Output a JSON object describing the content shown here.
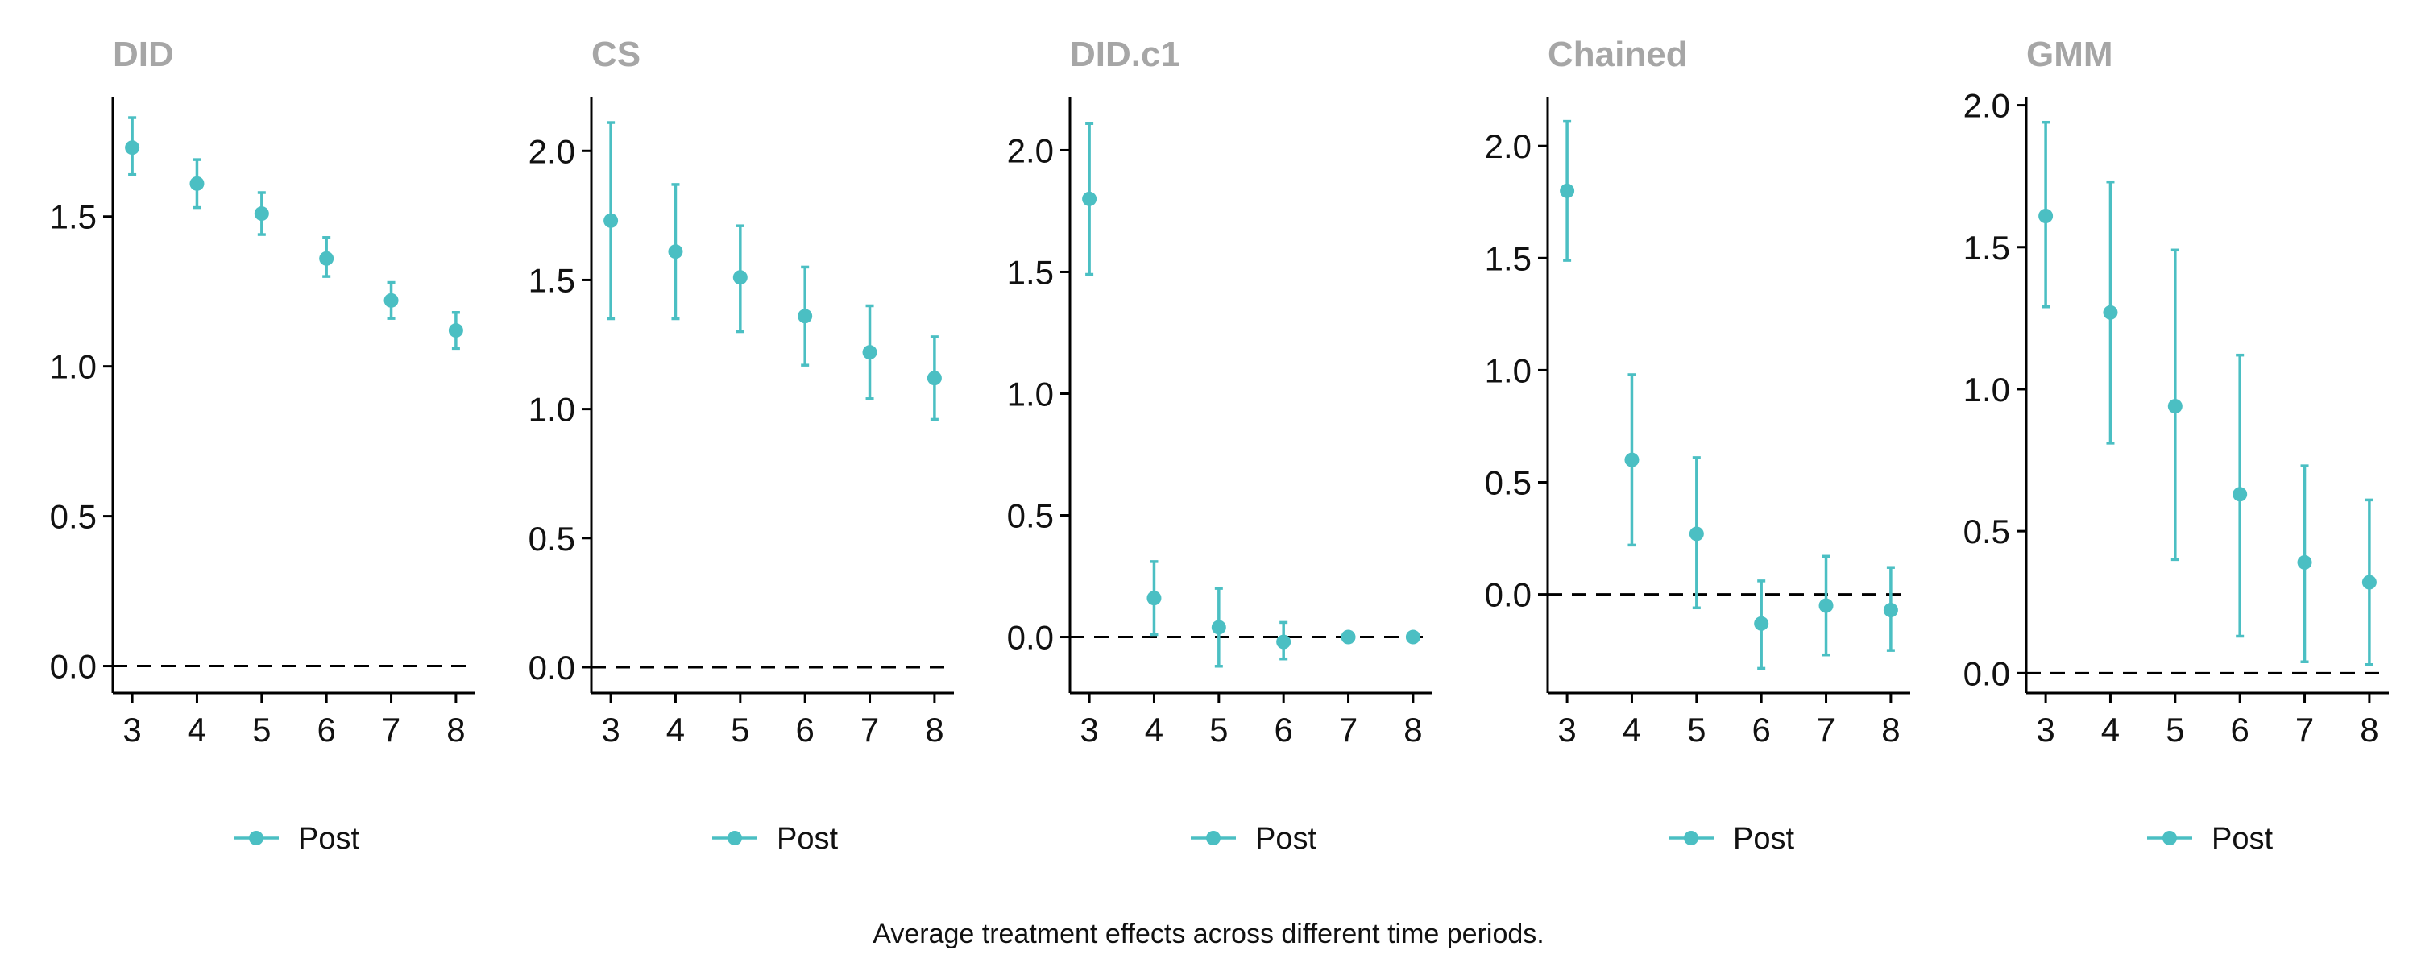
{
  "caption": "Average treatment effects across different time periods.",
  "colors": {
    "series": "#4BBFC3",
    "title": "#A6A6A6",
    "axis": "#000000",
    "reference": "#000000"
  },
  "chart_data": [
    {
      "type": "scatter",
      "title": "DID",
      "x": [
        3,
        4,
        5,
        6,
        7,
        8
      ],
      "x_ticks": [
        3,
        4,
        5,
        6,
        7,
        8
      ],
      "ylim": [
        -0.09,
        1.9
      ],
      "y_ticks": [
        0.0,
        0.5,
        1.0,
        1.5
      ],
      "y_tick_labels": [
        "0.0",
        "0.5",
        "1.0",
        "1.5"
      ],
      "reference_line": 0,
      "legend": "bottom",
      "grid": false,
      "series": [
        {
          "name": "Post",
          "values": [
            1.73,
            1.61,
            1.51,
            1.36,
            1.22,
            1.12
          ],
          "lower": [
            1.64,
            1.53,
            1.44,
            1.3,
            1.16,
            1.06
          ],
          "upper": [
            1.83,
            1.69,
            1.58,
            1.43,
            1.28,
            1.18
          ]
        }
      ]
    },
    {
      "type": "scatter",
      "title": "CS",
      "x": [
        3,
        4,
        5,
        6,
        7,
        8
      ],
      "x_ticks": [
        3,
        4,
        5,
        6,
        7,
        8
      ],
      "ylim": [
        -0.1,
        2.21
      ],
      "y_ticks": [
        0.0,
        0.5,
        1.0,
        1.5,
        2.0
      ],
      "y_tick_labels": [
        "0.0",
        "0.5",
        "1.0",
        "1.5",
        "2.0"
      ],
      "reference_line": 0,
      "legend": "bottom",
      "grid": false,
      "series": [
        {
          "name": "Post",
          "values": [
            1.73,
            1.61,
            1.51,
            1.36,
            1.22,
            1.12
          ],
          "lower": [
            1.35,
            1.35,
            1.3,
            1.17,
            1.04,
            0.96
          ],
          "upper": [
            2.11,
            1.87,
            1.71,
            1.55,
            1.4,
            1.28
          ]
        }
      ]
    },
    {
      "type": "scatter",
      "title": "DID.c1",
      "x": [
        3,
        4,
        5,
        6,
        7,
        8
      ],
      "x_ticks": [
        3,
        4,
        5,
        6,
        7,
        8
      ],
      "ylim": [
        -0.23,
        2.22
      ],
      "y_ticks": [
        0.0,
        0.5,
        1.0,
        1.5,
        2.0
      ],
      "y_tick_labels": [
        "0.0",
        "0.5",
        "1.0",
        "1.5",
        "2.0"
      ],
      "reference_line": 0,
      "legend": "bottom",
      "grid": false,
      "series": [
        {
          "name": "Post",
          "values": [
            1.8,
            0.16,
            0.04,
            -0.02,
            0.0,
            0.0
          ],
          "lower": [
            1.49,
            0.01,
            -0.12,
            -0.09,
            -0.02,
            -0.01
          ],
          "upper": [
            2.11,
            0.31,
            0.2,
            0.06,
            0.02,
            0.01
          ]
        }
      ]
    },
    {
      "type": "scatter",
      "title": "Chained",
      "x": [
        3,
        4,
        5,
        6,
        7,
        8
      ],
      "x_ticks": [
        3,
        4,
        5,
        6,
        7,
        8
      ],
      "ylim": [
        -0.44,
        2.22
      ],
      "y_ticks": [
        0.0,
        0.5,
        1.0,
        1.5,
        2.0
      ],
      "y_tick_labels": [
        "0.0",
        "0.5",
        "1.0",
        "1.5",
        "2.0"
      ],
      "reference_line": 0,
      "legend": "bottom",
      "grid": false,
      "series": [
        {
          "name": "Post",
          "values": [
            1.8,
            0.6,
            0.27,
            -0.13,
            -0.05,
            -0.07
          ],
          "lower": [
            1.49,
            0.22,
            -0.06,
            -0.33,
            -0.27,
            -0.25
          ],
          "upper": [
            2.11,
            0.98,
            0.61,
            0.06,
            0.17,
            0.12
          ]
        }
      ]
    },
    {
      "type": "scatter",
      "title": "GMM",
      "x": [
        3,
        4,
        5,
        6,
        7,
        8
      ],
      "x_ticks": [
        3,
        4,
        5,
        6,
        7,
        8
      ],
      "ylim": [
        -0.07,
        2.03
      ],
      "y_ticks": [
        0.0,
        0.5,
        1.0,
        1.5,
        2.0
      ],
      "y_tick_labels": [
        "0.0",
        "0.5",
        "1.0",
        "1.5",
        "2.0"
      ],
      "reference_line": 0,
      "legend": "bottom",
      "grid": false,
      "series": [
        {
          "name": "Post",
          "values": [
            1.61,
            1.27,
            0.94,
            0.63,
            0.39,
            0.32
          ],
          "lower": [
            1.29,
            0.81,
            0.4,
            0.13,
            0.04,
            0.03
          ],
          "upper": [
            1.94,
            1.73,
            1.49,
            1.12,
            0.73,
            0.61
          ]
        }
      ]
    }
  ]
}
